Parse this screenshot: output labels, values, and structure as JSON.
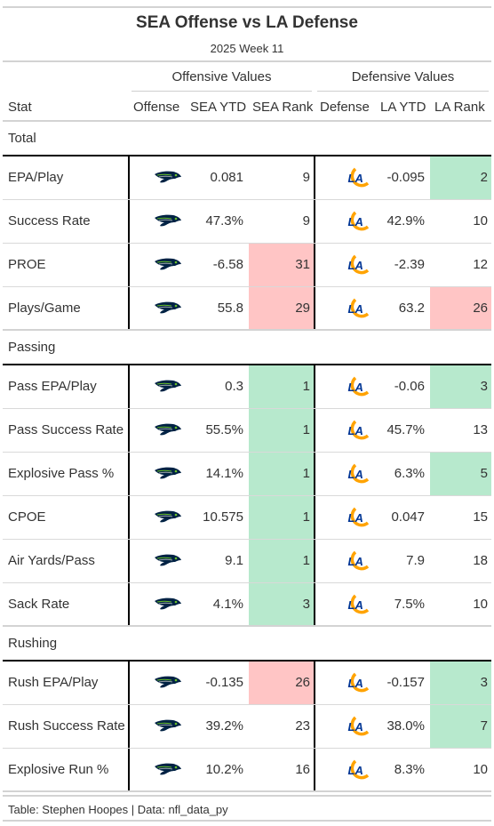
{
  "title": "SEA Offense vs LA Defense",
  "subtitle": "2025 Week 11",
  "spanners": {
    "offense": "Offensive Values",
    "defense": "Defensive Values"
  },
  "columns": {
    "stat": "Stat",
    "offense": "Offense",
    "sea_ytd": "SEA YTD",
    "sea_rank": "SEA Rank",
    "defense": "Defense",
    "la_ytd": "LA YTD",
    "la_rank": "LA Rank"
  },
  "logos": {
    "offense": "seahawks-logo-icon",
    "defense": "rams-logo-icon"
  },
  "colors": {
    "good": "#b7e9cd",
    "bad": "#ffc5c5"
  },
  "groups": [
    {
      "label": "Total",
      "rows": [
        {
          "stat": "EPA/Play",
          "sea_ytd": "0.081",
          "sea_rank": "9",
          "la_ytd": "-0.095",
          "la_rank": "2",
          "sea_status": "none",
          "la_status": "good"
        },
        {
          "stat": "Success Rate",
          "sea_ytd": "47.3%",
          "sea_rank": "9",
          "la_ytd": "42.9%",
          "la_rank": "10",
          "sea_status": "none",
          "la_status": "none"
        },
        {
          "stat": "PROE",
          "sea_ytd": "-6.58",
          "sea_rank": "31",
          "la_ytd": "-2.39",
          "la_rank": "12",
          "sea_status": "bad",
          "la_status": "none"
        },
        {
          "stat": "Plays/Game",
          "sea_ytd": "55.8",
          "sea_rank": "29",
          "la_ytd": "63.2",
          "la_rank": "26",
          "sea_status": "bad",
          "la_status": "bad"
        }
      ]
    },
    {
      "label": "Passing",
      "rows": [
        {
          "stat": "Pass EPA/Play",
          "sea_ytd": "0.3",
          "sea_rank": "1",
          "la_ytd": "-0.06",
          "la_rank": "3",
          "sea_status": "good",
          "la_status": "good"
        },
        {
          "stat": "Pass Success Rate",
          "sea_ytd": "55.5%",
          "sea_rank": "1",
          "la_ytd": "45.7%",
          "la_rank": "13",
          "sea_status": "good",
          "la_status": "none"
        },
        {
          "stat": "Explosive Pass %",
          "sea_ytd": "14.1%",
          "sea_rank": "1",
          "la_ytd": "6.3%",
          "la_rank": "5",
          "sea_status": "good",
          "la_status": "good"
        },
        {
          "stat": "CPOE",
          "sea_ytd": "10.575",
          "sea_rank": "1",
          "la_ytd": "0.047",
          "la_rank": "15",
          "sea_status": "good",
          "la_status": "none"
        },
        {
          "stat": "Air Yards/Pass",
          "sea_ytd": "9.1",
          "sea_rank": "1",
          "la_ytd": "7.9",
          "la_rank": "18",
          "sea_status": "good",
          "la_status": "none"
        },
        {
          "stat": "Sack Rate",
          "sea_ytd": "4.1%",
          "sea_rank": "3",
          "la_ytd": "7.5%",
          "la_rank": "10",
          "sea_status": "good",
          "la_status": "none"
        }
      ]
    },
    {
      "label": "Rushing",
      "rows": [
        {
          "stat": "Rush EPA/Play",
          "sea_ytd": "-0.135",
          "sea_rank": "26",
          "la_ytd": "-0.157",
          "la_rank": "3",
          "sea_status": "bad",
          "la_status": "good"
        },
        {
          "stat": "Rush Success Rate",
          "sea_ytd": "39.2%",
          "sea_rank": "23",
          "la_ytd": "38.0%",
          "la_rank": "7",
          "sea_status": "none",
          "la_status": "good"
        },
        {
          "stat": "Explosive Run %",
          "sea_ytd": "10.2%",
          "sea_rank": "16",
          "la_ytd": "8.3%",
          "la_rank": "10",
          "sea_status": "none",
          "la_status": "none"
        }
      ]
    }
  ],
  "footer": "Table: Stephen Hoopes | Data: nfl_data_py"
}
